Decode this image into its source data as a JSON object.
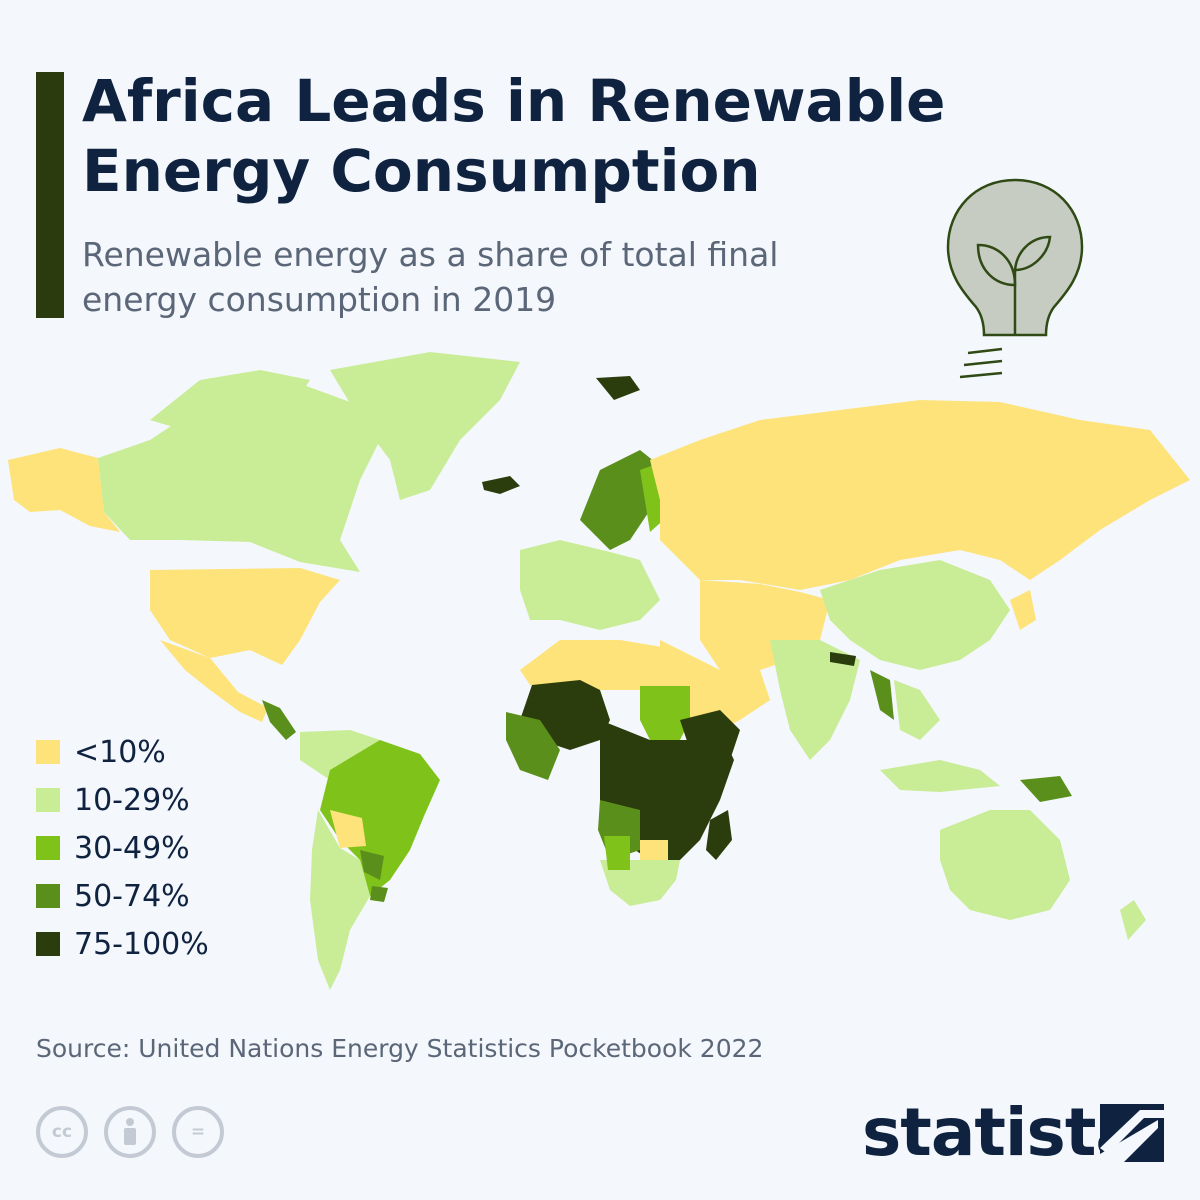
{
  "header": {
    "title": "Africa Leads in Renewable Energy Consumption",
    "subtitle": "Renewable energy as a share of total final energy consumption in 2019"
  },
  "colors": {
    "lt10": "#fde37a",
    "c10_29": "#c9ec97",
    "c30_49": "#7fc21a",
    "c50_74": "#5a8f1c",
    "c75_100": "#2b3d0c",
    "nodata": "#d8dde3",
    "accent_bar": "#2b3b0e"
  },
  "legend": [
    {
      "label": "<10%",
      "color": "#fde37a"
    },
    {
      "label": "10-29%",
      "color": "#c9ec97"
    },
    {
      "label": "30-49%",
      "color": "#7fc21a"
    },
    {
      "label": "50-74%",
      "color": "#5a8f1c"
    },
    {
      "label": "75-100%",
      "color": "#2b3d0c"
    }
  ],
  "footer": {
    "source": "Source: United Nations Energy Statistics Pocketbook 2022",
    "brand": "statista",
    "license_icons": [
      "cc-icon",
      "attribution-icon",
      "no-derivatives-icon"
    ],
    "cc_label": "cc",
    "nd_label": "="
  }
}
